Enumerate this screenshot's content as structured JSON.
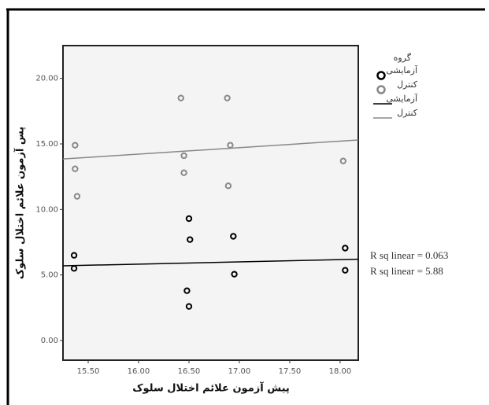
{
  "chart_data": {
    "type": "scatter",
    "x_label": "پیش آزمون علائم اختلال سلوک",
    "y_label": "پس آزمون علائم اختلال سلوک",
    "legend_title": "گروه",
    "xlim": [
      15.25,
      18.18
    ],
    "ylim": [
      -1.5,
      22.5
    ],
    "xticks": [
      {
        "value": 15.5,
        "label": "15.50"
      },
      {
        "value": 16,
        "label": "16.00"
      },
      {
        "value": 16.5,
        "label": "16.50"
      },
      {
        "value": 17,
        "label": "17.00"
      },
      {
        "value": 17.5,
        "label": "17.50"
      },
      {
        "value": 18,
        "label": "18.00"
      }
    ],
    "yticks": [
      {
        "value": 0,
        "label": "0.00"
      },
      {
        "value": 5,
        "label": "5.00"
      },
      {
        "value": 10,
        "label": "10.00"
      },
      {
        "value": 15,
        "label": "15.00"
      },
      {
        "value": 20,
        "label": "20.00"
      }
    ],
    "series": [
      {
        "name": "آزمایشی",
        "color": "#000000",
        "mark": "circle",
        "x": [
          15.36,
          15.36,
          16.5,
          16.51,
          16.48,
          16.5,
          16.94,
          16.95,
          18.05,
          18.05
        ],
        "values": [
          6.5,
          5.5,
          9.3,
          7.7,
          3.8,
          2.6,
          7.95,
          5.06,
          7.05,
          5.36
        ]
      },
      {
        "name": "کنترل",
        "color": "#888888",
        "mark": "circle",
        "x": [
          15.37,
          15.37,
          15.39,
          16.42,
          16.45,
          16.45,
          16.88,
          16.91,
          16.89,
          18.03
        ],
        "values": [
          14.9,
          13.1,
          11.0,
          18.5,
          14.1,
          12.8,
          18.5,
          14.9,
          11.8,
          13.7
        ]
      },
      {
        "name": "آزمایشی",
        "color": "#000000",
        "mark": "line",
        "x": [
          15.25,
          18.18
        ],
        "values": [
          5.7,
          6.2
        ]
      },
      {
        "name": "کنترل",
        "color": "#888888",
        "mark": "line",
        "x": [
          15.25,
          18.18
        ],
        "values": [
          13.85,
          15.3
        ]
      }
    ],
    "annotations": [
      {
        "text": "R sq linear = 0.063",
        "color": "#888888"
      },
      {
        "text": "R sq linear = 5.88",
        "color": "#000000"
      }
    ]
  }
}
